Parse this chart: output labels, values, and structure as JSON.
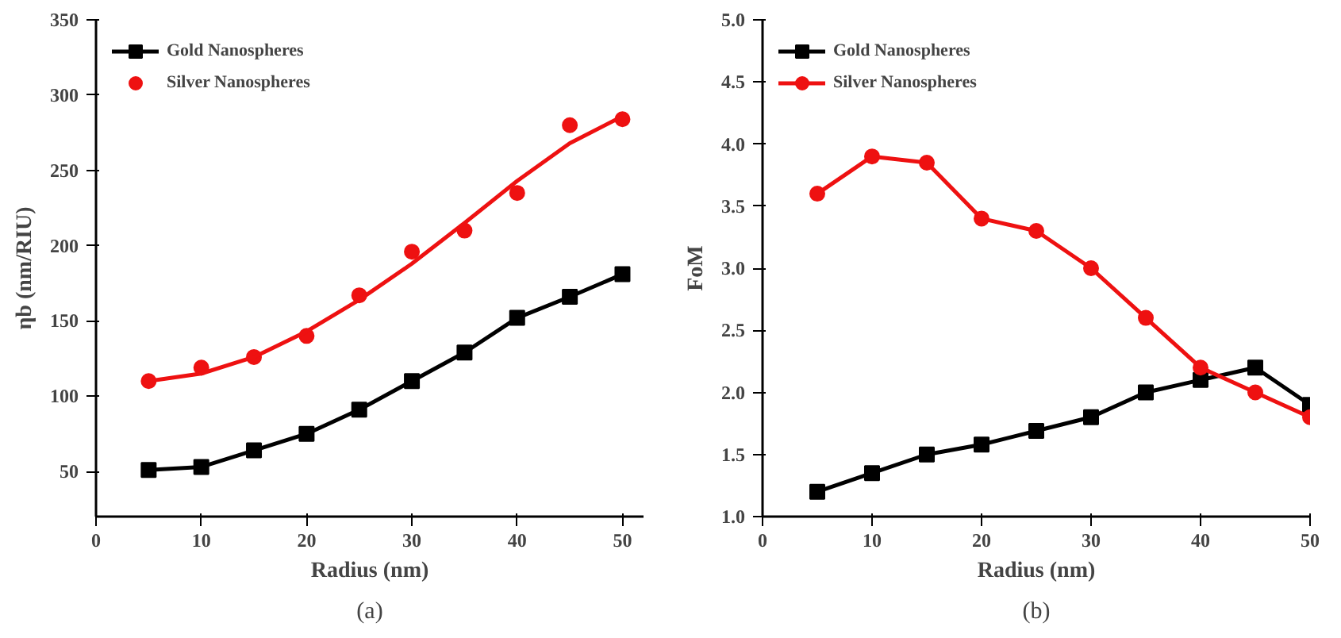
{
  "chart_data": [
    {
      "type": "line",
      "xlabel": "Radius (nm)",
      "ylabel": "ηb (nm/RIU)",
      "annotations": [
        "(a)"
      ],
      "xlim": [
        0,
        52
      ],
      "ylim": [
        20,
        350
      ],
      "xticks": [
        0,
        10,
        20,
        30,
        40,
        50
      ],
      "yticks": [
        50,
        100,
        150,
        200,
        250,
        300,
        350
      ],
      "grid": false,
      "legend": "top left",
      "x": [
        5,
        10,
        15,
        20,
        25,
        30,
        35,
        40,
        45,
        50
      ],
      "series": [
        {
          "name": "Gold Nanospheres",
          "color": "#000000",
          "marker": "square",
          "values": [
            51,
            53,
            64,
            75,
            91,
            110,
            129,
            152,
            166,
            181
          ]
        },
        {
          "name": "Silver Nanospheres",
          "color": "#ee1111",
          "type": "scatter",
          "marker": "circle",
          "values": [
            110,
            119,
            126,
            140,
            167,
            196,
            210,
            235,
            280,
            284
          ]
        },
        {
          "color": "#ee1111",
          "marker": "none",
          "x": [
            5,
            10,
            15,
            20,
            25,
            30,
            35,
            40,
            45,
            50
          ],
          "values": [
            110,
            115,
            126,
            143,
            164,
            188,
            215,
            243,
            268,
            286
          ]
        }
      ]
    },
    {
      "type": "line",
      "xlabel": "Radius (nm)",
      "ylabel": "FoM",
      "annotations": [
        "(b)"
      ],
      "xlim": [
        0,
        50
      ],
      "ylim": [
        1.0,
        5.0
      ],
      "xticks": [
        0,
        10,
        20,
        30,
        40,
        50
      ],
      "yticks": [
        {
          "value": 1.0,
          "label": "1.0"
        },
        {
          "value": 1.5,
          "label": "1.5"
        },
        {
          "value": 2.0,
          "label": "2.0"
        },
        {
          "value": 2.5,
          "label": "2.5"
        },
        {
          "value": 3.0,
          "label": "3.0"
        },
        {
          "value": 3.5,
          "label": "3.5"
        },
        {
          "value": 4.0,
          "label": "4.0"
        },
        {
          "value": 4.5,
          "label": "4.5"
        },
        {
          "value": 5.0,
          "label": "5.0"
        }
      ],
      "grid": false,
      "legend": "top left",
      "x": [
        5,
        10,
        15,
        20,
        25,
        30,
        35,
        40,
        45,
        50
      ],
      "series": [
        {
          "name": "Gold Nanospheres",
          "color": "#000000",
          "marker": "square",
          "values": [
            1.2,
            1.35,
            1.5,
            1.58,
            1.69,
            1.8,
            2.0,
            2.1,
            2.2,
            1.9
          ]
        },
        {
          "name": "Silver Nanospheres",
          "color": "#ee1111",
          "marker": "circle",
          "values": [
            3.6,
            3.9,
            3.85,
            3.4,
            3.3,
            3.0,
            2.6,
            2.2,
            2.0,
            1.8
          ]
        }
      ]
    }
  ]
}
